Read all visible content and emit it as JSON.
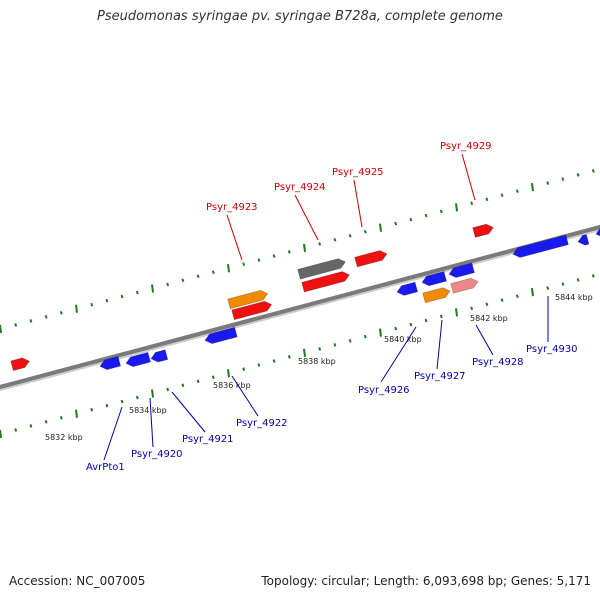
{
  "title": "Pseudomonas syringae pv. syringae B728a, complete genome",
  "footer": {
    "accession": "Accession: NC_007005",
    "summary": "Topology: circular; Length: 6,093,698 bp; Genes: 5,171"
  },
  "colors": {
    "backbone": "#7a7a7a",
    "tick": "#1f7a1f",
    "forward_label": "#cc0000",
    "reverse_label": "#0000aa",
    "red_gene": "#ee1111",
    "blue_gene": "#1a1aee",
    "orange_gene": "#f08a00",
    "gray_gene": "#666666",
    "pink_gene": "#ee8888"
  },
  "scale_labels": [
    "5832 kbp",
    "5834 kbp",
    "5836 kbp",
    "5838 kbp",
    "5840 kbp",
    "5842 kbp",
    "5844 kbp"
  ],
  "forward_labels": [
    "Psyr_4923",
    "Psyr_4924",
    "Psyr_4925",
    "Psyr_4929"
  ],
  "reverse_labels": [
    "AvrPto1",
    "Psyr_4920",
    "Psyr_4921",
    "Psyr_4922",
    "Psyr_4926",
    "Psyr_4927",
    "Psyr_4928",
    "Psyr_4930"
  ]
}
